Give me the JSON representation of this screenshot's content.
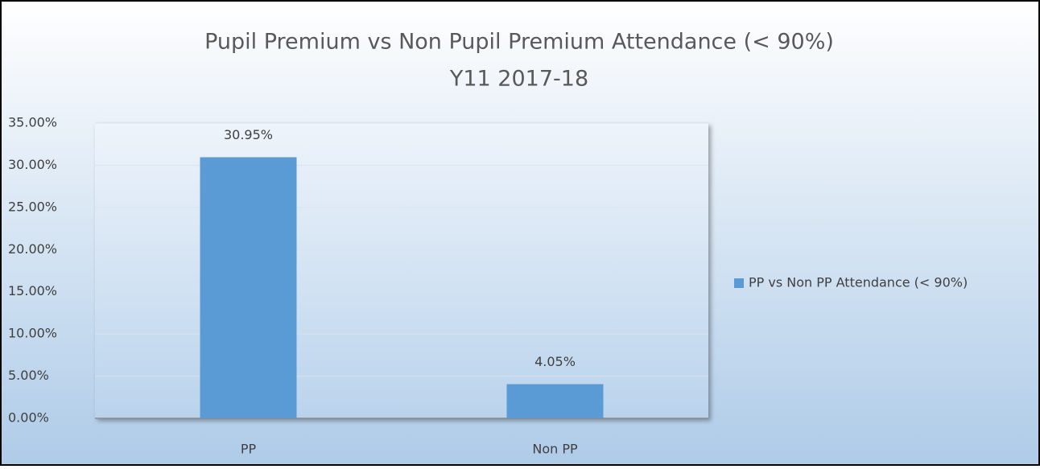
{
  "chart_data": {
    "type": "bar",
    "title": "Pupil Premium vs Non Pupil Premium Attendance (< 90%)",
    "subtitle": "Y11 2017-18",
    "categories": [
      "PP",
      "Non PP"
    ],
    "series": [
      {
        "name": "PP vs Non PP Attendance (< 90%)",
        "color": "#5b9bd5",
        "values": [
          30.95,
          4.05
        ],
        "value_labels": [
          "30.95%",
          "4.05%"
        ]
      }
    ],
    "ylim": [
      0,
      35
    ],
    "yticks": [
      {
        "value": 0,
        "label": "0.00%"
      },
      {
        "value": 5,
        "label": "5.00%"
      },
      {
        "value": 10,
        "label": "10.00%"
      },
      {
        "value": 15,
        "label": "15.00%"
      },
      {
        "value": 20,
        "label": "20.00%"
      },
      {
        "value": 25,
        "label": "25.00%"
      },
      {
        "value": 30,
        "label": "30.00%"
      },
      {
        "value": 35,
        "label": "35.00%"
      }
    ],
    "grid": true,
    "legend": "right"
  }
}
